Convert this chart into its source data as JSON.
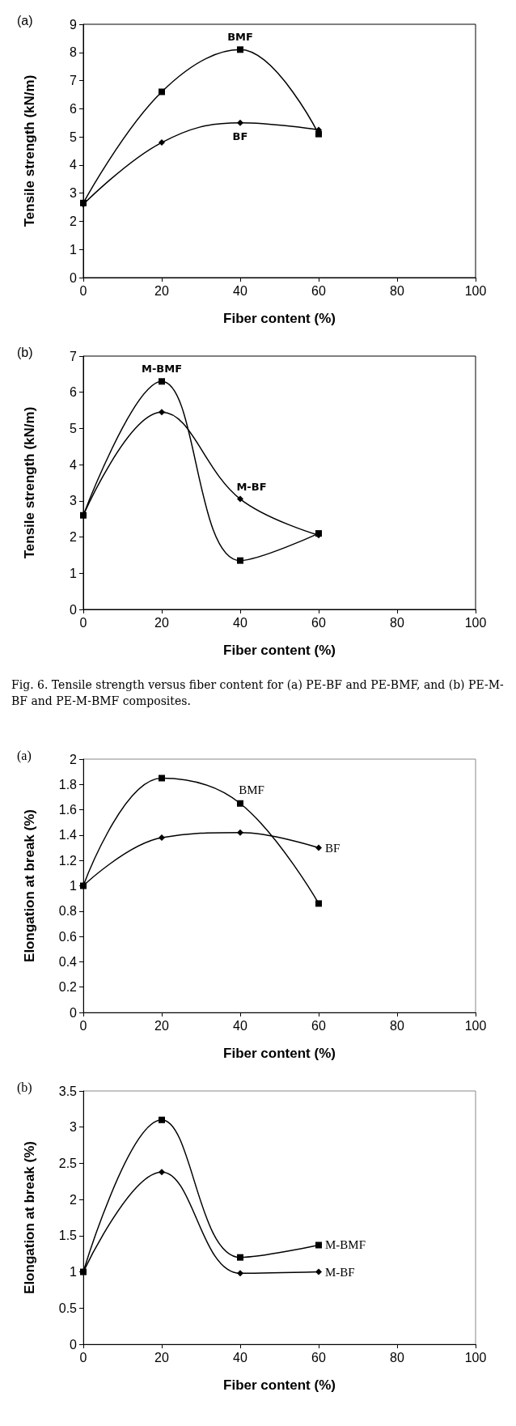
{
  "chart_data": [
    {
      "type": "line",
      "title": "(a)",
      "xlabel": "Fiber content (%)",
      "ylabel": "Tensile strength (kN/m)",
      "x": [
        0,
        20,
        40,
        60
      ],
      "xlim": [
        0,
        100
      ],
      "xticks": [
        0,
        20,
        40,
        60,
        80,
        100
      ],
      "ylim": [
        0,
        9
      ],
      "yticks": [
        0,
        1,
        2,
        3,
        4,
        5,
        6,
        7,
        8,
        9
      ],
      "grid": false,
      "series": [
        {
          "color": "#000000",
          "marker": "square",
          "values": [
            2.65,
            6.6,
            8.1,
            5.1
          ]
        },
        {
          "color": "#000000",
          "marker": "diamond",
          "values": [
            2.6,
            4.8,
            5.5,
            5.25
          ]
        }
      ],
      "annotations": [
        {
          "text": "BMF",
          "x": 40,
          "y": 8.1
        },
        {
          "text": "BF",
          "x": 40,
          "y": 5.5
        }
      ]
    },
    {
      "type": "line",
      "title": "(b)",
      "xlabel": "Fiber content (%)",
      "ylabel": "Tensile strength (kN/m)",
      "x": [
        0,
        20,
        40,
        60
      ],
      "xlim": [
        0,
        100
      ],
      "xticks": [
        0,
        20,
        40,
        60,
        80,
        100
      ],
      "ylim": [
        0,
        7
      ],
      "yticks": [
        0,
        1,
        2,
        3,
        4,
        5,
        6,
        7
      ],
      "grid": false,
      "series": [
        {
          "color": "#000000",
          "marker": "square",
          "values": [
            2.6,
            6.3,
            1.35,
            2.1
          ]
        },
        {
          "color": "#000000",
          "marker": "diamond",
          "values": [
            2.6,
            5.45,
            3.05,
            2.05
          ]
        }
      ],
      "annotations": [
        {
          "text": "M-BMF",
          "x": 20,
          "y": 6.3
        },
        {
          "text": "M-BF",
          "x": 40,
          "y": 3.05
        },
        "Fig. 6. Tensile strength versus fiber content for (a) PE-BF and PE-BMF, and (b) PE-M-BF and PE-M-BMF composites."
      ]
    },
    {
      "type": "line",
      "title": "(a)",
      "xlabel": "Fiber content (%)",
      "ylabel": "Elongation at break (%)",
      "x": [
        0,
        20,
        40,
        60
      ],
      "xlim": [
        0,
        100
      ],
      "xticks": [
        0,
        20,
        40,
        60,
        80,
        100
      ],
      "ylim": [
        0,
        2
      ],
      "yticks": [
        0,
        0.2,
        0.4,
        0.6,
        0.8,
        1,
        1.2,
        1.4,
        1.6,
        1.8,
        2
      ],
      "grid": false,
      "series": [
        {
          "color": "#000000",
          "marker": "square",
          "values": [
            1.0,
            1.85,
            1.65,
            0.86
          ]
        },
        {
          "color": "#000000",
          "marker": "diamond",
          "values": [
            1.0,
            1.38,
            1.42,
            1.3
          ]
        }
      ],
      "annotations": [
        {
          "text": "BMF",
          "x": 40,
          "y": 1.65
        },
        {
          "text": "BF",
          "x": 60,
          "y": 1.3
        }
      ]
    },
    {
      "type": "line",
      "title": "(b)",
      "xlabel": "Fiber content (%)",
      "ylabel": "Elongation at break (%)",
      "x": [
        0,
        20,
        40,
        60
      ],
      "xlim": [
        0,
        100
      ],
      "xticks": [
        0,
        20,
        40,
        60,
        80,
        100
      ],
      "ylim": [
        0,
        3.5
      ],
      "yticks": [
        0,
        0.5,
        1,
        1.5,
        2,
        2.5,
        3,
        3.5
      ],
      "grid": false,
      "series": [
        {
          "color": "#000000",
          "marker": "square",
          "values": [
            1.0,
            3.1,
            1.2,
            1.37
          ]
        },
        {
          "color": "#000000",
          "marker": "diamond",
          "values": [
            1.0,
            2.38,
            0.98,
            1.0
          ]
        }
      ],
      "annotations": [
        {
          "text": "M-BMF",
          "x": 60,
          "y": 1.37
        },
        {
          "text": "M-BF",
          "x": 60,
          "y": 1.0
        }
      ]
    }
  ]
}
